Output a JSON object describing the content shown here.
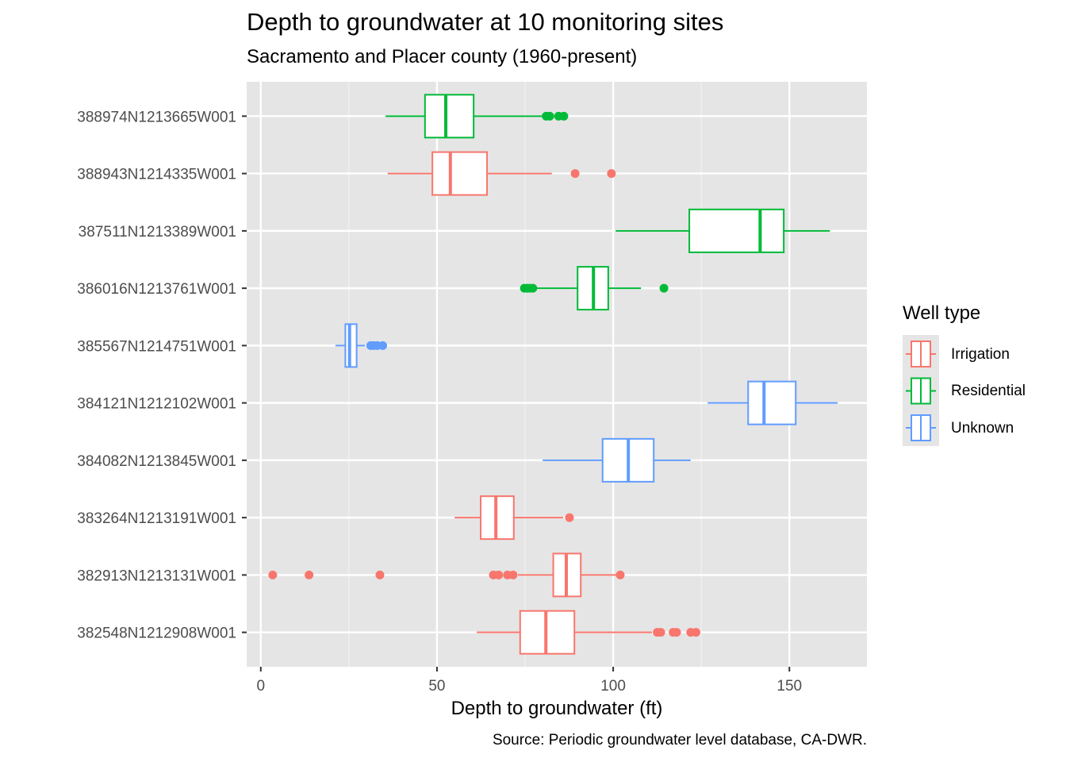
{
  "chart_data": {
    "type": "boxplot",
    "orientation": "horizontal",
    "title": "Depth to groundwater at 10 monitoring sites",
    "subtitle": "Sacramento and Placer county (1960-present)",
    "xlabel": "Depth to groundwater (ft)",
    "ylabel": "",
    "caption": "Source: Periodic groundwater level database, CA-DWR.",
    "xlim": [
      -4,
      172
    ],
    "xticks": [
      0,
      50,
      100,
      150
    ],
    "xtick_labels": [
      "0",
      "50",
      "100",
      "150"
    ],
    "grid": true,
    "legend": {
      "title": "Well type",
      "position": "right",
      "entries": [
        {
          "label": "Irrigation",
          "color": "#F8766D"
        },
        {
          "label": "Residential",
          "color": "#00BA38"
        },
        {
          "label": "Unknown",
          "color": "#619CFF"
        }
      ]
    },
    "categories": [
      "388974N1213665W001",
      "388943N1214335W001",
      "387511N1213389W001",
      "386016N1213761W001",
      "385567N1214751W001",
      "384121N1212102W001",
      "384082N1213845W001",
      "383264N1213191W001",
      "382913N1213131W001",
      "382548N1212908W001"
    ],
    "boxes": [
      {
        "site": "388974N1213665W001",
        "type": "Residential",
        "whisker_low": 35.4,
        "q1": 46.6,
        "median": 52.5,
        "q3": 60.4,
        "whisker_high": 80.4,
        "outliers": [
          81.0,
          82.0,
          84.5,
          86.0
        ]
      },
      {
        "site": "388943N1214335W001",
        "type": "Irrigation",
        "whisker_low": 36.0,
        "q1": 48.7,
        "median": 53.8,
        "q3": 64.2,
        "whisker_high": 82.6,
        "outliers": [
          89.2,
          99.5
        ]
      },
      {
        "site": "387511N1213389W001",
        "type": "Residential",
        "whisker_low": 100.7,
        "q1": 121.6,
        "median": 141.7,
        "q3": 148.4,
        "whisker_high": 161.5,
        "outliers": []
      },
      {
        "site": "386016N1213761W001",
        "type": "Residential",
        "whisker_low": 78.2,
        "q1": 89.9,
        "median": 94.4,
        "q3": 98.6,
        "whisker_high": 107.9,
        "outliers": [
          74.8,
          75.6,
          76.4,
          77.2,
          114.4
        ]
      },
      {
        "site": "385567N1214751W001",
        "type": "Unknown",
        "whisker_low": 21.2,
        "q1": 24.0,
        "median": 25.2,
        "q3": 27.2,
        "whisker_high": 29.6,
        "outliers": [
          31.2,
          32.0,
          33.0,
          34.6
        ]
      },
      {
        "site": "384121N1212102W001",
        "type": "Unknown",
        "whisker_low": 126.8,
        "q1": 138.3,
        "median": 142.8,
        "q3": 151.8,
        "whisker_high": 163.7,
        "outliers": []
      },
      {
        "site": "384082N1213845W001",
        "type": "Unknown",
        "whisker_low": 80.0,
        "q1": 97.0,
        "median": 104.3,
        "q3": 111.5,
        "whisker_high": 122.0,
        "outliers": []
      },
      {
        "site": "383264N1213191W001",
        "type": "Irrigation",
        "whisker_low": 55.0,
        "q1": 62.4,
        "median": 66.7,
        "q3": 71.8,
        "whisker_high": 85.8,
        "outliers": [
          87.6
        ]
      },
      {
        "site": "382913N1213131W001",
        "type": "Irrigation",
        "whisker_low": 73.0,
        "q1": 83.0,
        "median": 86.7,
        "q3": 90.8,
        "whisker_high": 101.5,
        "outliers": [
          3.4,
          13.7,
          33.8,
          66.0,
          67.5,
          70.0,
          71.6,
          102.0
        ]
      },
      {
        "site": "382548N1212908W001",
        "type": "Irrigation",
        "whisker_low": 61.3,
        "q1": 73.6,
        "median": 80.9,
        "q3": 89.0,
        "whisker_high": 111.0,
        "outliers": [
          112.5,
          113.5,
          117.0,
          118.0,
          122.0,
          123.5
        ]
      }
    ]
  }
}
